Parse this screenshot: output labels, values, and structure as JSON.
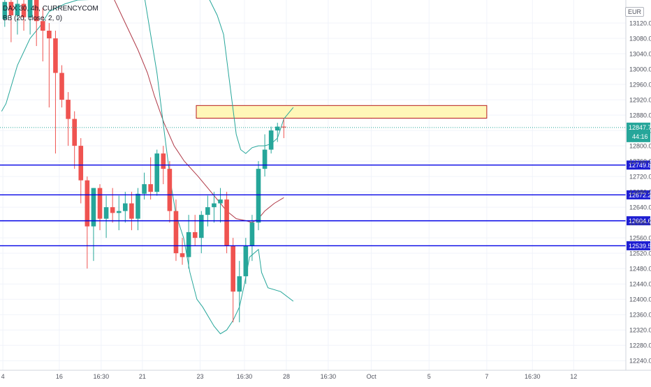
{
  "legend": {
    "symbol_line": "DAX 30, 4h, CURRENCYCOM",
    "indicator_line": "BB (20, close, 2, 0)"
  },
  "currency_badge": "EUR",
  "colors": {
    "bull": "#26a69a",
    "bear": "#ef5350",
    "level_line": "#0000e6",
    "level_label_bg": "#1e1ed2",
    "bb_band": "#26a69a",
    "bb_basis": "#b03a48",
    "zone_fill": "#fff7b8",
    "zone_border": "#b71c1c",
    "last_price_bg": "#26a69a",
    "grid": "#f0f3fa"
  },
  "chart_data": {
    "type": "candlestick",
    "symbol": "DAX 30",
    "timeframe": "4h",
    "source": "CURRENCYCOM",
    "ylim": [
      12215,
      13180
    ],
    "y_ticks": [
      13120,
      13080,
      13040,
      13000,
      12960,
      12920,
      12880,
      12840,
      12800,
      12760,
      12720,
      12680,
      12640,
      12600,
      12560,
      12520,
      12480,
      12440,
      12400,
      12360,
      12320,
      12280,
      12240
    ],
    "x_ticks": [
      {
        "label": "4",
        "bar": -0.3
      },
      {
        "label": "16",
        "bar": 8.6
      },
      {
        "label": "16:30",
        "bar": 15.2
      },
      {
        "label": "21",
        "bar": 21.7
      },
      {
        "label": "23",
        "bar": 30.8
      },
      {
        "label": "16:30",
        "bar": 37.8
      },
      {
        "label": "28",
        "bar": 44.4
      },
      {
        "label": "16:30",
        "bar": 51.0
      },
      {
        "label": "Oct",
        "bar": 57.8
      },
      {
        "label": "5",
        "bar": 66.9
      },
      {
        "label": "7",
        "bar": 76.0
      },
      {
        "label": "16:30",
        "bar": 83.2
      },
      {
        "label": "12",
        "bar": 89.7
      }
    ],
    "candles": [
      {
        "o": 13130,
        "h": 13190,
        "l": 13110,
        "c": 13175
      },
      {
        "o": 13175,
        "h": 13190,
        "l": 13070,
        "c": 13140
      },
      {
        "o": 13140,
        "h": 13190,
        "l": 13090,
        "c": 13170
      },
      {
        "o": 13170,
        "h": 13190,
        "l": 13100,
        "c": 13135
      },
      {
        "o": 13135,
        "h": 13190,
        "l": 13090,
        "c": 13180
      },
      {
        "o": 13180,
        "h": 13190,
        "l": 13060,
        "c": 13125
      },
      {
        "o": 13125,
        "h": 13160,
        "l": 13020,
        "c": 13100
      },
      {
        "o": 13100,
        "h": 13120,
        "l": 12900,
        "c": 13080
      },
      {
        "o": 13080,
        "h": 13100,
        "l": 12780,
        "c": 12990
      },
      {
        "o": 12990,
        "h": 13010,
        "l": 12900,
        "c": 12920
      },
      {
        "o": 12920,
        "h": 12940,
        "l": 12800,
        "c": 12870
      },
      {
        "o": 12870,
        "h": 12890,
        "l": 12740,
        "c": 12800
      },
      {
        "o": 12800,
        "h": 12820,
        "l": 12650,
        "c": 12710
      },
      {
        "o": 12710,
        "h": 12720,
        "l": 12480,
        "c": 12590
      },
      {
        "o": 12590,
        "h": 12690,
        "l": 12500,
        "c": 12690
      },
      {
        "o": 12690,
        "h": 12700,
        "l": 12580,
        "c": 12610
      },
      {
        "o": 12610,
        "h": 12670,
        "l": 12560,
        "c": 12640
      },
      {
        "o": 12640,
        "h": 12690,
        "l": 12600,
        "c": 12625
      },
      {
        "o": 12625,
        "h": 12670,
        "l": 12580,
        "c": 12630
      },
      {
        "o": 12630,
        "h": 12680,
        "l": 12600,
        "c": 12650
      },
      {
        "o": 12650,
        "h": 12680,
        "l": 12580,
        "c": 12610
      },
      {
        "o": 12610,
        "h": 12690,
        "l": 12580,
        "c": 12675
      },
      {
        "o": 12675,
        "h": 12730,
        "l": 12660,
        "c": 12700
      },
      {
        "o": 12700,
        "h": 12770,
        "l": 12660,
        "c": 12680
      },
      {
        "o": 12680,
        "h": 12790,
        "l": 12670,
        "c": 12780
      },
      {
        "o": 12780,
        "h": 12800,
        "l": 12700,
        "c": 12740
      },
      {
        "o": 12740,
        "h": 12760,
        "l": 12600,
        "c": 12630
      },
      {
        "o": 12630,
        "h": 12660,
        "l": 12500,
        "c": 12520
      },
      {
        "o": 12520,
        "h": 12560,
        "l": 12490,
        "c": 12510
      },
      {
        "o": 12510,
        "h": 12620,
        "l": 12480,
        "c": 12575
      },
      {
        "o": 12575,
        "h": 12620,
        "l": 12540,
        "c": 12560
      },
      {
        "o": 12560,
        "h": 12630,
        "l": 12520,
        "c": 12620
      },
      {
        "o": 12620,
        "h": 12670,
        "l": 12590,
        "c": 12640
      },
      {
        "o": 12640,
        "h": 12680,
        "l": 12600,
        "c": 12650
      },
      {
        "o": 12650,
        "h": 12690,
        "l": 12600,
        "c": 12660
      },
      {
        "o": 12660,
        "h": 12680,
        "l": 12520,
        "c": 12540
      },
      {
        "o": 12540,
        "h": 12560,
        "l": 12340,
        "c": 12420
      },
      {
        "o": 12420,
        "h": 12500,
        "l": 12340,
        "c": 12460
      },
      {
        "o": 12460,
        "h": 12560,
        "l": 12440,
        "c": 12540
      },
      {
        "o": 12540,
        "h": 12620,
        "l": 12500,
        "c": 12600
      },
      {
        "o": 12600,
        "h": 12760,
        "l": 12580,
        "c": 12740
      },
      {
        "o": 12740,
        "h": 12830,
        "l": 12720,
        "c": 12790
      },
      {
        "o": 12790,
        "h": 12850,
        "l": 12780,
        "c": 12840
      },
      {
        "o": 12840,
        "h": 12860,
        "l": 12810,
        "c": 12850
      },
      {
        "o": 12850,
        "h": 12870,
        "l": 12820,
        "c": 12847.7
      }
    ],
    "bb_upper": [
      [
        -0.5,
        12890
      ],
      [
        0.2,
        12910
      ],
      [
        2,
        13010
      ],
      [
        4,
        13080
      ],
      [
        5.5,
        13110
      ],
      [
        7,
        13150
      ],
      [
        9.5,
        13170
      ],
      [
        11.5,
        13180
      ],
      [
        32,
        13190
      ],
      [
        33.5,
        13140
      ],
      [
        34.5,
        13090
      ],
      [
        35.5,
        12960
      ],
      [
        36.5,
        12830
      ],
      [
        37.2,
        12790
      ],
      [
        38,
        12780
      ],
      [
        39,
        12795
      ],
      [
        40,
        12800
      ],
      [
        41,
        12800
      ],
      [
        42,
        12805
      ],
      [
        43,
        12820
      ],
      [
        44,
        12870
      ],
      [
        45.5,
        12900
      ]
    ],
    "bb_basis": [
      [
        17,
        13190
      ],
      [
        19,
        13120
      ],
      [
        21,
        13050
      ],
      [
        22.5,
        12990
      ],
      [
        23.6,
        12930
      ],
      [
        25.1,
        12860
      ],
      [
        26.7,
        12800
      ],
      [
        28.3,
        12760
      ],
      [
        30.5,
        12720
      ],
      [
        32,
        12690
      ],
      [
        33.5,
        12660
      ],
      [
        35,
        12630
      ],
      [
        36.5,
        12610
      ],
      [
        38,
        12605
      ],
      [
        39,
        12600
      ],
      [
        40,
        12610
      ],
      [
        41,
        12630
      ],
      [
        42.5,
        12650
      ],
      [
        44,
        12665
      ]
    ],
    "bb_lower": [
      [
        22,
        13190
      ],
      [
        24,
        12990
      ],
      [
        25.2,
        12830
      ],
      [
        26.2,
        12700
      ],
      [
        27,
        12620
      ],
      [
        28.2,
        12560
      ],
      [
        29.2,
        12470
      ],
      [
        30.3,
        12400
      ],
      [
        31.2,
        12380
      ],
      [
        33,
        12330
      ],
      [
        34,
        12310
      ],
      [
        35,
        12320
      ],
      [
        36,
        12345
      ],
      [
        37,
        12380
      ],
      [
        37.8,
        12440
      ],
      [
        38.6,
        12510
      ],
      [
        40,
        12530
      ],
      [
        40.5,
        12470
      ],
      [
        41.5,
        12430
      ],
      [
        43.5,
        12420
      ],
      [
        45.5,
        12395
      ]
    ],
    "levels": [
      {
        "value": 12749.8,
        "label": "12749.8"
      },
      {
        "value": 12672.2,
        "label": "12672.2"
      },
      {
        "value": 12604.6,
        "label": "12604.6"
      },
      {
        "value": 12539.5,
        "label": "12539.5"
      }
    ],
    "zone": {
      "x_start_bar": 30.2,
      "x_end_bar": 76.0,
      "y_top": 12905,
      "y_bottom": 12872
    },
    "last_price": {
      "value": 12847.7,
      "label": "12847.7",
      "countdown": "44:16"
    }
  }
}
